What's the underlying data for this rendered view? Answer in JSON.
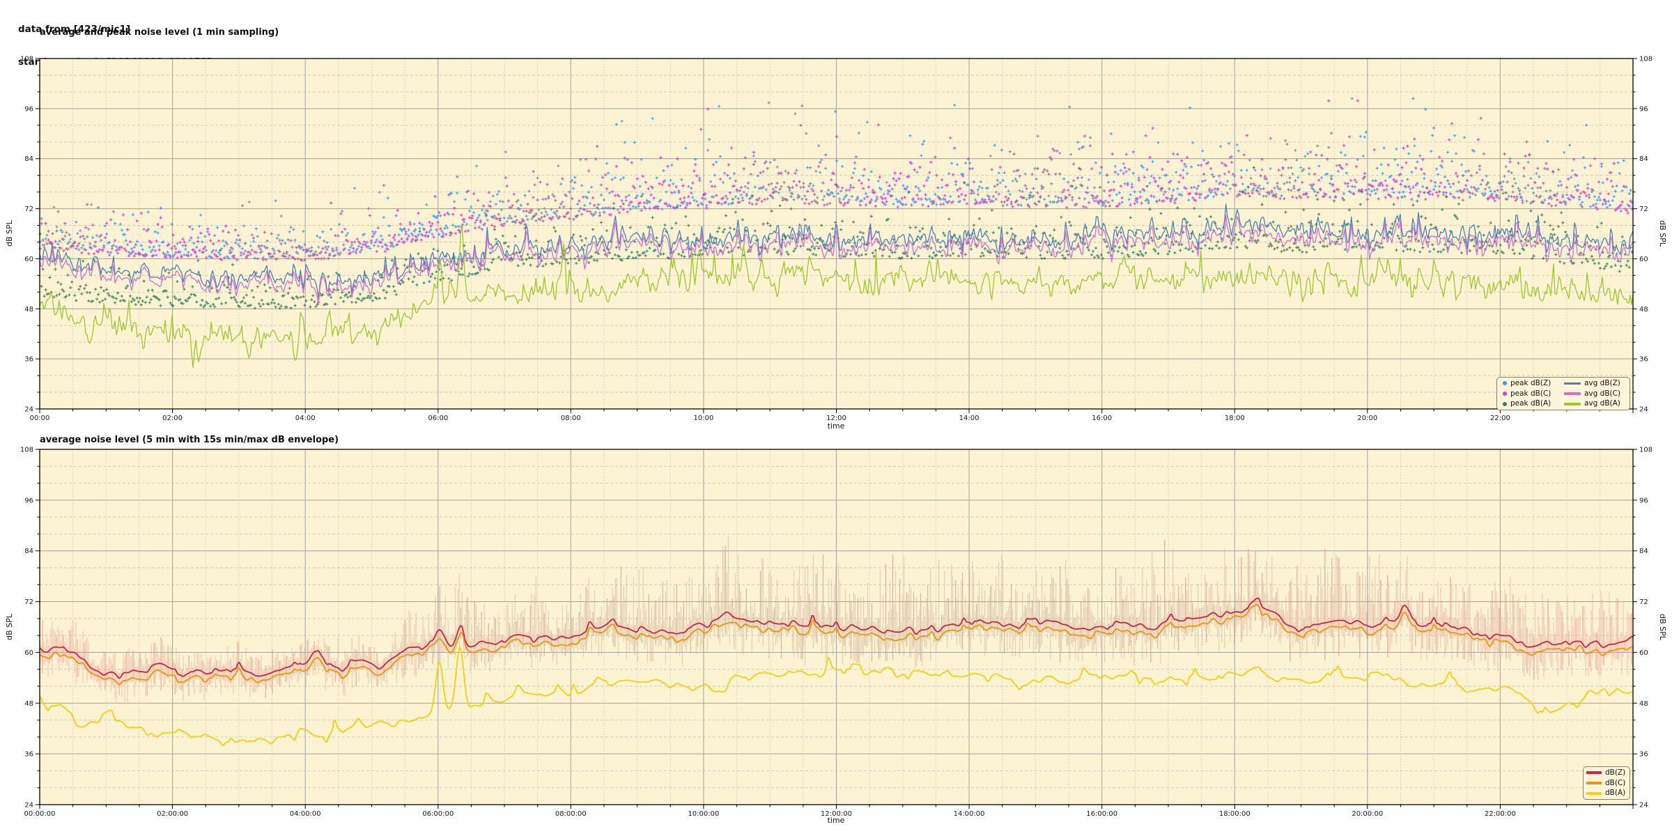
{
  "header": {
    "line1": "data from [423/mic1]",
    "line2": "starting point is [20240112_000053]"
  },
  "colors": {
    "plot_bg": "#fbf3d2",
    "grid_major": "#a8a8a8",
    "grid_minor": "#c6c6c6",
    "spine": "#000000",
    "tick_text": "#1a1a1a",
    "legend_bg": "#fcf5d9",
    "legend_border": "#8d8162"
  },
  "chart_data": {
    "type": "line",
    "charts": [
      {
        "title": "average and peak noise level (1 min sampling)",
        "xlabel": "time",
        "ylabel": "dB SPL",
        "ylim": [
          24,
          108
        ],
        "yticks": [
          24,
          36,
          48,
          60,
          72,
          84,
          96,
          108
        ],
        "y_minor_step": 4,
        "xlim_hours": [
          0,
          24
        ],
        "xtick_hours": [
          0,
          2,
          4,
          6,
          8,
          10,
          12,
          14,
          16,
          18,
          20,
          22
        ],
        "xtick_labels": [
          "00:00",
          "02:00",
          "04:00",
          "06:00",
          "08:00",
          "10:00",
          "12:00",
          "14:00",
          "16:00",
          "18:00",
          "20:00",
          "22:00"
        ],
        "x_minor_hours": 0.5,
        "grid": "major solid, minor dashed, both axes",
        "legend_position": "lower right",
        "scatter_series": [
          {
            "name": "peak dB(Z)",
            "color": "#3b99ea",
            "seed": 404,
            "median_anchors": [
              65,
              63.5,
              62.5,
              62,
              62,
              64,
              68,
              71,
              73,
              74.5,
              76,
              77,
              76.5,
              76,
              76.5,
              76,
              76,
              77,
              78.5,
              78,
              78,
              78,
              77.5,
              76,
              74
            ],
            "spread_anchors": [
              4,
              4,
              3.5,
              3.5,
              3.5,
              4,
              4.5,
              5,
              5.5,
              5.5,
              6,
              6,
              6,
              6,
              6,
              6,
              6,
              6,
              6,
              6,
              6,
              6,
              6,
              5.5,
              5
            ]
          },
          {
            "name": "peak dB(C)",
            "color": "#e437c5",
            "seed": 505,
            "median_anchors": [
              64.5,
              63,
              62,
              61.5,
              61.5,
              63.5,
              67.5,
              70.5,
              72.5,
              74,
              75.5,
              76.5,
              76,
              75.5,
              76,
              75.5,
              75.5,
              76.5,
              78,
              77.5,
              77.5,
              77.5,
              77,
              75.5,
              73.5
            ],
            "spread_anchors": [
              4,
              4,
              3.5,
              3.5,
              3.5,
              4,
              4.5,
              5,
              5.5,
              5.5,
              6,
              6,
              6,
              6,
              6,
              6,
              6,
              6,
              6,
              6,
              6,
              6,
              6,
              5.5,
              5
            ]
          },
          {
            "name": "peak dB(A)",
            "color": "#35805a",
            "seed": 606,
            "median_anchors": [
              53,
              51.5,
              50.5,
              50,
              50,
              52,
              57,
              60,
              61.5,
              62.5,
              63.5,
              64,
              63.5,
              63,
              63.5,
              63,
              63,
              64,
              65.5,
              64.5,
              65,
              64.5,
              64,
              61.5,
              59.5
            ],
            "spread_anchors": [
              4,
              4,
              3.5,
              3.5,
              3.5,
              4,
              4.5,
              5,
              5,
              5,
              5.5,
              5.5,
              5.5,
              5.5,
              5.5,
              5.5,
              5.5,
              5.5,
              5.5,
              5.5,
              5.5,
              5.5,
              5.5,
              5,
              5
            ]
          }
        ],
        "line_series": [
          {
            "name": "avg dB(Z)",
            "color": "#4a80b4",
            "width": 1.3,
            "seed": 101,
            "amp_slow": 1.0,
            "amp_fast": 1.9,
            "amp_spike": 5,
            "amp_ind": 0,
            "anchors": [
              60.5,
              57.5,
              56,
              55.5,
              55,
              56.5,
              60,
              62.5,
              63.5,
              64.5,
              65.5,
              66,
              65.5,
              65,
              65.5,
              65,
              65.5,
              66,
              67.5,
              66.5,
              66.5,
              66.5,
              66,
              64.5,
              62.5
            ],
            "spikes": []
          },
          {
            "name": "avg dB(C)",
            "color": "#d36fd3",
            "width": 1.3,
            "seed": 101,
            "amp_slow": 1.0,
            "amp_fast": 1.9,
            "amp_spike": 5,
            "amp_ind": 0.7,
            "anchors": [
              59,
              56,
              54.5,
              54,
              53.5,
              55,
              58.5,
              61,
              62,
              63,
              63.5,
              64,
              63.5,
              63,
              63.5,
              63,
              63.5,
              64,
              65.5,
              64.5,
              64.5,
              64.5,
              64,
              62.5,
              60.5
            ],
            "spikes": []
          },
          {
            "name": "avg dB(A)",
            "color": "#9dc62f",
            "width": 1.3,
            "seed": 303,
            "amp_slow": 1.2,
            "amp_fast": 2.2,
            "amp_spike": 6,
            "amp_ind": 0,
            "anchors": [
              48,
              45,
              42.5,
              40.5,
              41,
              43.5,
              49.5,
              52,
              53.5,
              54.5,
              55,
              55.5,
              55,
              54.5,
              54.5,
              54,
              54.5,
              55,
              55.5,
              54.5,
              55,
              54.5,
              54,
              52,
              50
            ],
            "spikes": [
              [
                0.75,
                -5,
                0.04
              ],
              [
                1.55,
                -5,
                0.04
              ],
              [
                2.35,
                -5.5,
                0.04
              ],
              [
                3.15,
                -5,
                0.04
              ],
              [
                3.85,
                -4.5,
                0.04
              ],
              [
                6.03,
                12,
                0.025
              ],
              [
                6.35,
                13,
                0.025
              ],
              [
                7.9,
                8,
                0.02
              ],
              [
                9.95,
                7,
                0.025
              ],
              [
                10.6,
                6.5,
                0.025
              ],
              [
                13.4,
                5.5,
                0.025
              ],
              [
                19.9,
                6,
                0.025
              ],
              [
                23.1,
                5,
                0.025
              ]
            ]
          }
        ]
      },
      {
        "title": "average noise level (5 min with 15s min/max dB envelope)",
        "xlabel": "time",
        "ylabel": "dB SPL",
        "ylim": [
          24,
          108
        ],
        "yticks": [
          24,
          36,
          48,
          60,
          72,
          84,
          96,
          108
        ],
        "y_minor_step": 4,
        "xlim_hours": [
          0,
          24
        ],
        "xtick_hours": [
          0,
          2,
          4,
          6,
          8,
          10,
          12,
          14,
          16,
          18,
          20,
          22
        ],
        "xtick_labels": [
          "00:00:00",
          "02:00:00",
          "04:00:00",
          "06:00:00",
          "08:00:00",
          "10:00:00",
          "12:00:00",
          "14:00:00",
          "16:00:00",
          "18:00:00",
          "20:00:00",
          "22:00:00"
        ],
        "x_minor_hours": 0.5,
        "grid": "major solid, minor dashed, both axes",
        "legend_position": "lower right",
        "envelope": {
          "name": "15s min/max dB envelope",
          "color": "#eb9d92",
          "alpha": 0.5,
          "seed": 111,
          "top_anchors": [
            9,
            7,
            6,
            6,
            6,
            8,
            12,
            14,
            16,
            19,
            22,
            23,
            21,
            20,
            21,
            20,
            20,
            21,
            23,
            21,
            22,
            21,
            19,
            16,
            13
          ],
          "bottom_anchors": [
            6,
            5,
            4,
            4,
            4,
            5,
            5,
            5,
            5,
            6,
            6,
            7,
            7,
            7,
            7,
            7,
            7,
            7,
            7,
            7,
            7,
            7,
            7,
            6,
            6
          ]
        },
        "line_series": [
          {
            "name": "dB(Z)",
            "color": "#d42045",
            "width": 1.8,
            "seed": 707,
            "amp_slow": 1.3,
            "amp_fast": 0.7,
            "amp_spike": 2,
            "amp_ind": 0,
            "anchors": [
              60.5,
              56.5,
              55.5,
              55.5,
              56,
              58,
              61.5,
              63,
              64,
              65,
              66.5,
              67,
              66,
              66,
              66.5,
              66,
              66,
              67,
              69.5,
              67,
              67.5,
              66.5,
              64.5,
              63,
              62.5
            ],
            "spikes": [
              [
                4.15,
                2.5,
                0.1
              ],
              [
                6.02,
                3.5,
                0.06
              ],
              [
                6.33,
                4,
                0.06
              ],
              [
                10.35,
                1.5,
                0.06
              ],
              [
                18.3,
                2,
                0.15
              ],
              [
                20.55,
                3.5,
                0.06
              ],
              [
                22.45,
                -2.5,
                0.12
              ]
            ]
          },
          {
            "name": "dB(C)",
            "color": "#f59307",
            "width": 1.8,
            "seed": 707,
            "amp_slow": 1.3,
            "amp_fast": 0.7,
            "amp_spike": 2,
            "amp_ind": 0.6,
            "anchors": [
              59,
              55,
              54,
              54,
              54.5,
              56.5,
              60,
              61.5,
              62.5,
              63.5,
              65,
              65.5,
              64.5,
              64.5,
              65,
              64.5,
              64.5,
              65.5,
              68,
              65.5,
              66,
              65,
              63,
              61.5,
              60.5
            ],
            "spikes": [
              [
                4.15,
                2,
                0.1
              ],
              [
                6.02,
                3,
                0.06
              ],
              [
                6.33,
                4,
                0.06
              ],
              [
                18.3,
                2,
                0.15
              ],
              [
                20.55,
                3,
                0.06
              ],
              [
                22.45,
                -2.5,
                0.12
              ]
            ]
          },
          {
            "name": "dB(A)",
            "color": "#fccf03",
            "width": 1.8,
            "seed": 909,
            "amp_slow": 1.5,
            "amp_fast": 0.8,
            "amp_spike": 2.5,
            "amp_ind": 0,
            "anchors": [
              47,
              42.5,
              40.5,
              39.5,
              41,
              43.5,
              46.5,
              48.5,
              50.5,
              52,
              53,
              54,
              55,
              54,
              54,
              53.5,
              54,
              54,
              55,
              53.5,
              54.5,
              53,
              52,
              49,
              49.5
            ],
            "spikes": [
              [
                6.02,
                13,
                0.055
              ],
              [
                6.33,
                14.5,
                0.055
              ],
              [
                22.7,
                -2.5,
                0.15
              ]
            ]
          }
        ]
      }
    ]
  }
}
